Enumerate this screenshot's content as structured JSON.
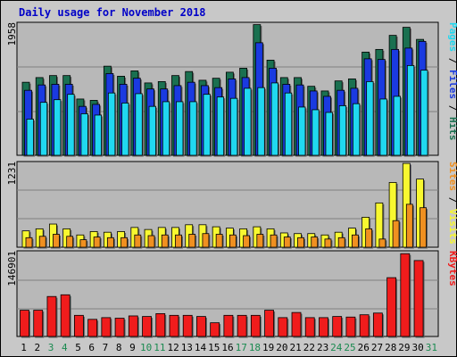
{
  "chart_data": [
    {
      "type": "bar",
      "title": "Daily usage for November 2018",
      "categories": [
        "1",
        "2",
        "3",
        "4",
        "5",
        "6",
        "7",
        "8",
        "9",
        "10",
        "11",
        "12",
        "13",
        "14",
        "15",
        "16",
        "17",
        "18",
        "19",
        "20",
        "21",
        "22",
        "23",
        "24",
        "25",
        "26",
        "27",
        "28",
        "29",
        "30",
        "31"
      ],
      "weekend_categories": [
        "3",
        "4",
        "10",
        "11",
        "17",
        "18",
        "24",
        "25",
        "31"
      ],
      "ymax_label": "1958",
      "ylim": [
        0,
        1958
      ],
      "series": [
        {
          "name": "Hits",
          "color": "#1a7050",
          "values": [
            1090,
            1160,
            1190,
            1190,
            840,
            820,
            1330,
            1180,
            1260,
            1080,
            1100,
            1190,
            1250,
            1120,
            1150,
            1240,
            1300,
            1950,
            1420,
            1160,
            1160,
            1030,
            960,
            1110,
            1140,
            1540,
            1580,
            1790,
            1910,
            1730,
            0
          ]
        },
        {
          "name": "Files",
          "color": "#1a3ae0",
          "values": [
            970,
            1050,
            1060,
            1060,
            730,
            760,
            1220,
            1060,
            1150,
            990,
            990,
            1040,
            1090,
            1040,
            1010,
            1140,
            1160,
            1680,
            1300,
            1060,
            1050,
            960,
            880,
            970,
            1000,
            1440,
            1430,
            1580,
            1600,
            1700,
            0
          ]
        },
        {
          "name": "Pages",
          "color": "#20d8f0",
          "values": [
            540,
            790,
            830,
            910,
            620,
            600,
            930,
            780,
            920,
            730,
            800,
            800,
            800,
            910,
            870,
            850,
            1000,
            1010,
            1080,
            930,
            720,
            680,
            640,
            740,
            770,
            1100,
            840,
            880,
            1340,
            1270,
            0
          ]
        }
      ]
    },
    {
      "type": "bar",
      "categories": [
        "1",
        "2",
        "3",
        "4",
        "5",
        "6",
        "7",
        "8",
        "9",
        "10",
        "11",
        "12",
        "13",
        "14",
        "15",
        "16",
        "17",
        "18",
        "19",
        "20",
        "21",
        "22",
        "23",
        "24",
        "25",
        "26",
        "27",
        "28",
        "29",
        "30",
        "31"
      ],
      "ymax_label": "1231",
      "ylim": [
        0,
        1231
      ],
      "series": [
        {
          "name": "Visits",
          "color": "#f8f830",
          "values": [
            240,
            270,
            340,
            270,
            180,
            230,
            220,
            230,
            290,
            260,
            290,
            290,
            330,
            330,
            300,
            280,
            270,
            300,
            270,
            210,
            200,
            200,
            180,
            220,
            280,
            440,
            650,
            950,
            1230,
            1000,
            0
          ]
        },
        {
          "name": "Sites",
          "color": "#f09020",
          "values": [
            140,
            160,
            190,
            160,
            110,
            150,
            140,
            140,
            180,
            170,
            180,
            180,
            190,
            200,
            190,
            180,
            170,
            190,
            180,
            150,
            140,
            150,
            120,
            140,
            180,
            270,
            120,
            390,
            630,
            580,
            0
          ]
        }
      ]
    },
    {
      "type": "bar",
      "categories": [
        "1",
        "2",
        "3",
        "4",
        "5",
        "6",
        "7",
        "8",
        "9",
        "10",
        "11",
        "12",
        "13",
        "14",
        "15",
        "16",
        "17",
        "18",
        "19",
        "20",
        "21",
        "22",
        "23",
        "24",
        "25",
        "26",
        "27",
        "28",
        "29",
        "30",
        "31"
      ],
      "ymax_label": "146901",
      "ylim": [
        0,
        146901
      ],
      "series": [
        {
          "name": "KBytes",
          "color": "#f01c1c",
          "values": [
            46000,
            46000,
            70000,
            73000,
            37000,
            30000,
            33000,
            32000,
            36000,
            35000,
            40000,
            37000,
            37000,
            35000,
            24000,
            37000,
            37000,
            37000,
            46000,
            33000,
            42000,
            33000,
            33000,
            35000,
            34000,
            38000,
            41000,
            103000,
            145000,
            133000,
            0
          ]
        }
      ]
    }
  ]
}
